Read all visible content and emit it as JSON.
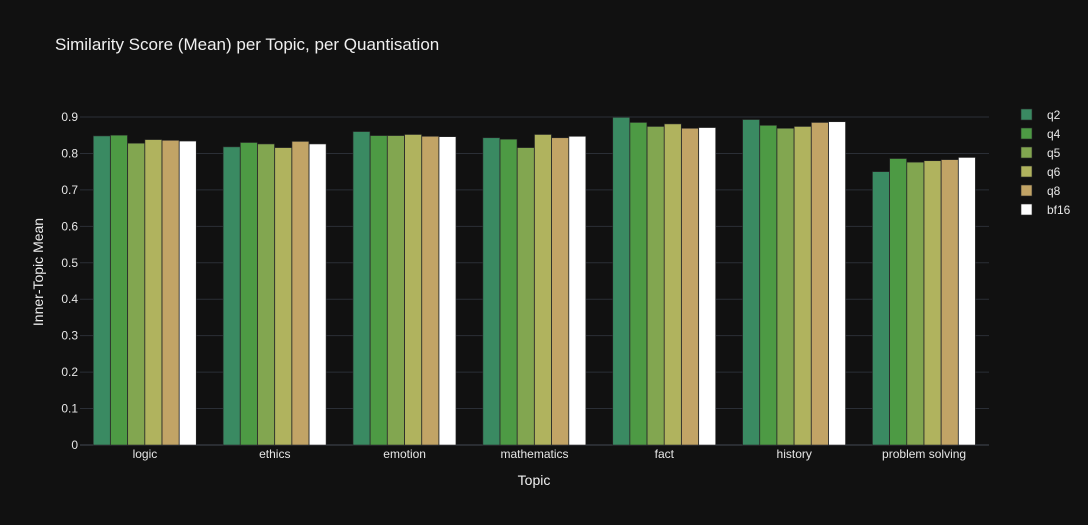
{
  "chart_data": {
    "type": "bar",
    "title": "Similarity Score (Mean) per Topic, per Quantisation",
    "xlabel": "Topic",
    "ylabel": "Inner-Topic Mean",
    "ylim": [
      0,
      0.9
    ],
    "yticks": [
      0,
      0.1,
      0.2,
      0.3,
      0.4,
      0.5,
      0.6,
      0.7,
      0.8,
      0.9
    ],
    "ytick_labels": [
      "0",
      "0.1",
      "0.2",
      "0.3",
      "0.4",
      "0.5",
      "0.6",
      "0.7",
      "0.8",
      "0.9"
    ],
    "grid": true,
    "legend_position": "top-right",
    "categories": [
      "logic",
      "ethics",
      "emotion",
      "mathematics",
      "fact",
      "history",
      "problem solving"
    ],
    "series": [
      {
        "name": "q2",
        "color": "#3a8a62",
        "values": [
          0.848,
          0.818,
          0.86,
          0.843,
          0.899,
          0.893,
          0.75
        ]
      },
      {
        "name": "q4",
        "color": "#4d9a44",
        "values": [
          0.85,
          0.83,
          0.849,
          0.839,
          0.885,
          0.877,
          0.786
        ]
      },
      {
        "name": "q5",
        "color": "#82a650",
        "values": [
          0.828,
          0.826,
          0.849,
          0.816,
          0.874,
          0.869,
          0.776
        ]
      },
      {
        "name": "q6",
        "color": "#b0b35e",
        "values": [
          0.838,
          0.816,
          0.852,
          0.852,
          0.881,
          0.874,
          0.78
        ]
      },
      {
        "name": "q8",
        "color": "#c2a466",
        "values": [
          0.836,
          0.833,
          0.847,
          0.843,
          0.869,
          0.885,
          0.783
        ]
      },
      {
        "name": "bf16",
        "color": "#ffffff",
        "values": [
          0.834,
          0.826,
          0.846,
          0.847,
          0.871,
          0.887,
          0.789
        ]
      }
    ]
  }
}
